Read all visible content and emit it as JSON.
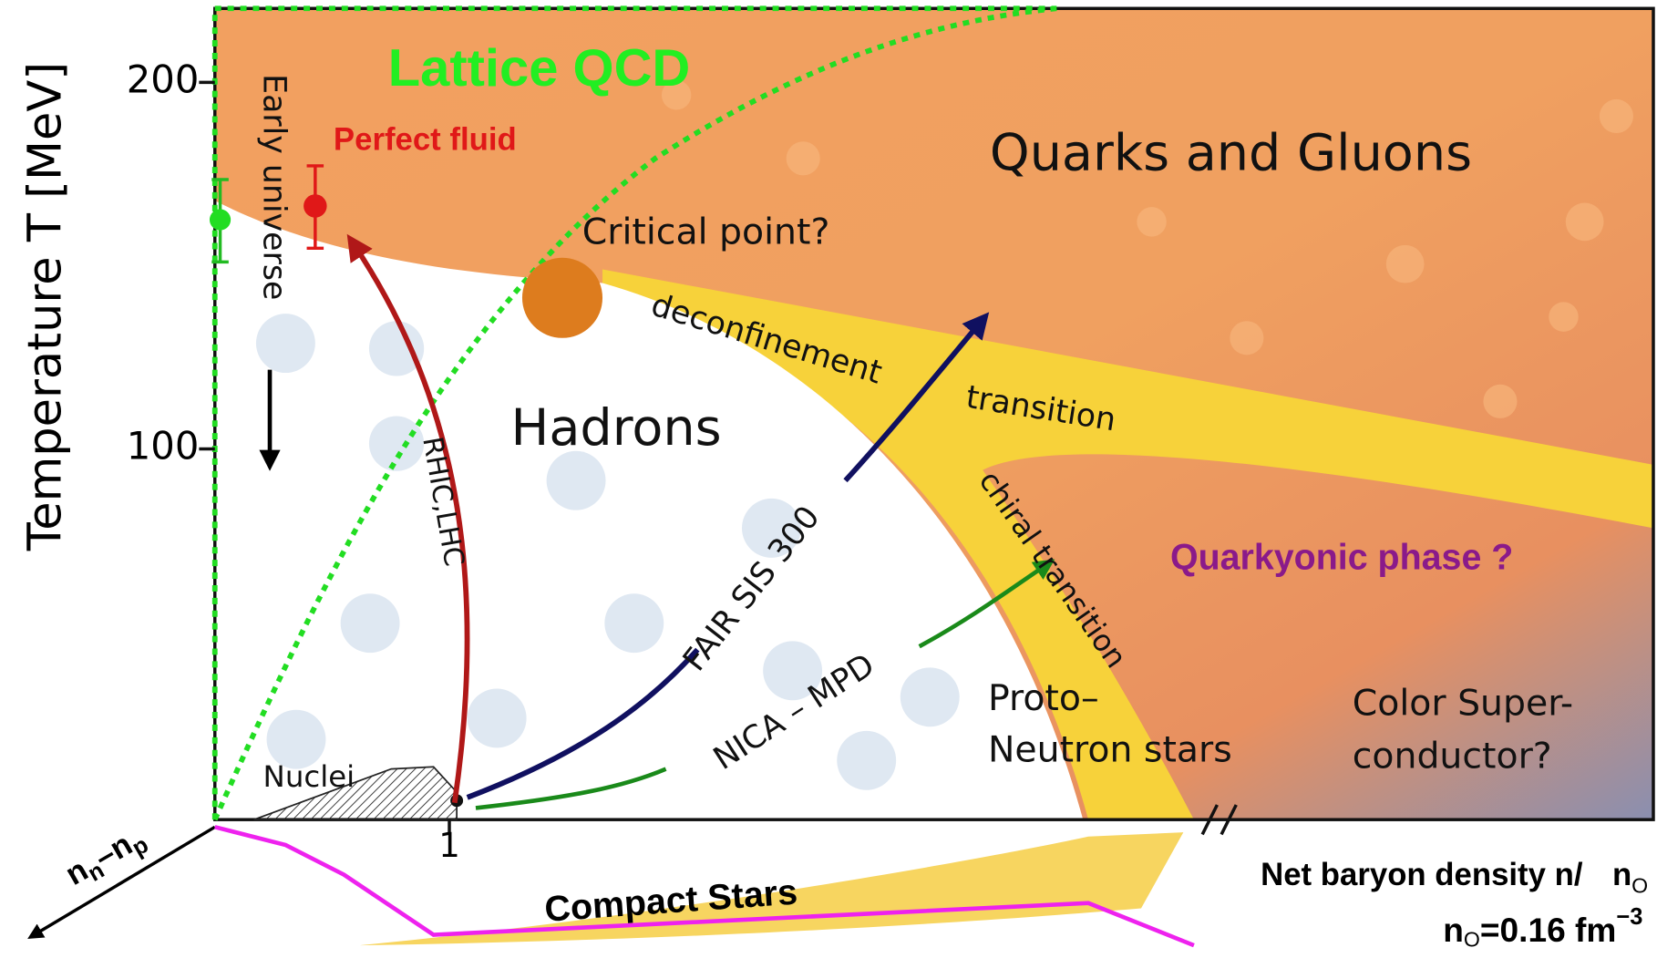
{
  "axis_y": {
    "title": "Temperature T [MeV]",
    "ticks": [
      "200",
      "100"
    ]
  },
  "axis_x": {
    "ticks": [
      "1"
    ],
    "title_parts": [
      "Net baryon density n/",
      "n",
      "O"
    ],
    "note_parts": [
      "n",
      "O",
      "=0.16 fm",
      "−3"
    ]
  },
  "axis_isospin": {
    "parts": [
      "n",
      "n",
      "–n",
      "p"
    ]
  },
  "labels": {
    "lattice": "Lattice  QCD",
    "perfect_fluid": "Perfect fluid",
    "early_universe": "Early universe",
    "quarks_gluons": "Quarks and Gluons",
    "critical_point": "Critical point?",
    "deconfinement": "deconfinement",
    "transition": "transition",
    "hadrons": "Hadrons",
    "chiral": "chiral transition",
    "quarkyonic": "Quarkyonic phase ?",
    "rhic": "RHIC,LHC",
    "fair": "FAIR SIS 300",
    "nica": "NICA – MPD",
    "proto": "Proto–",
    "neutron_stars": "Neutron stars",
    "color_super": "Color Super-",
    "conductor": "conductor?",
    "nuclei": "Nuclei",
    "compact_stars": "Compact  Stars"
  }
}
